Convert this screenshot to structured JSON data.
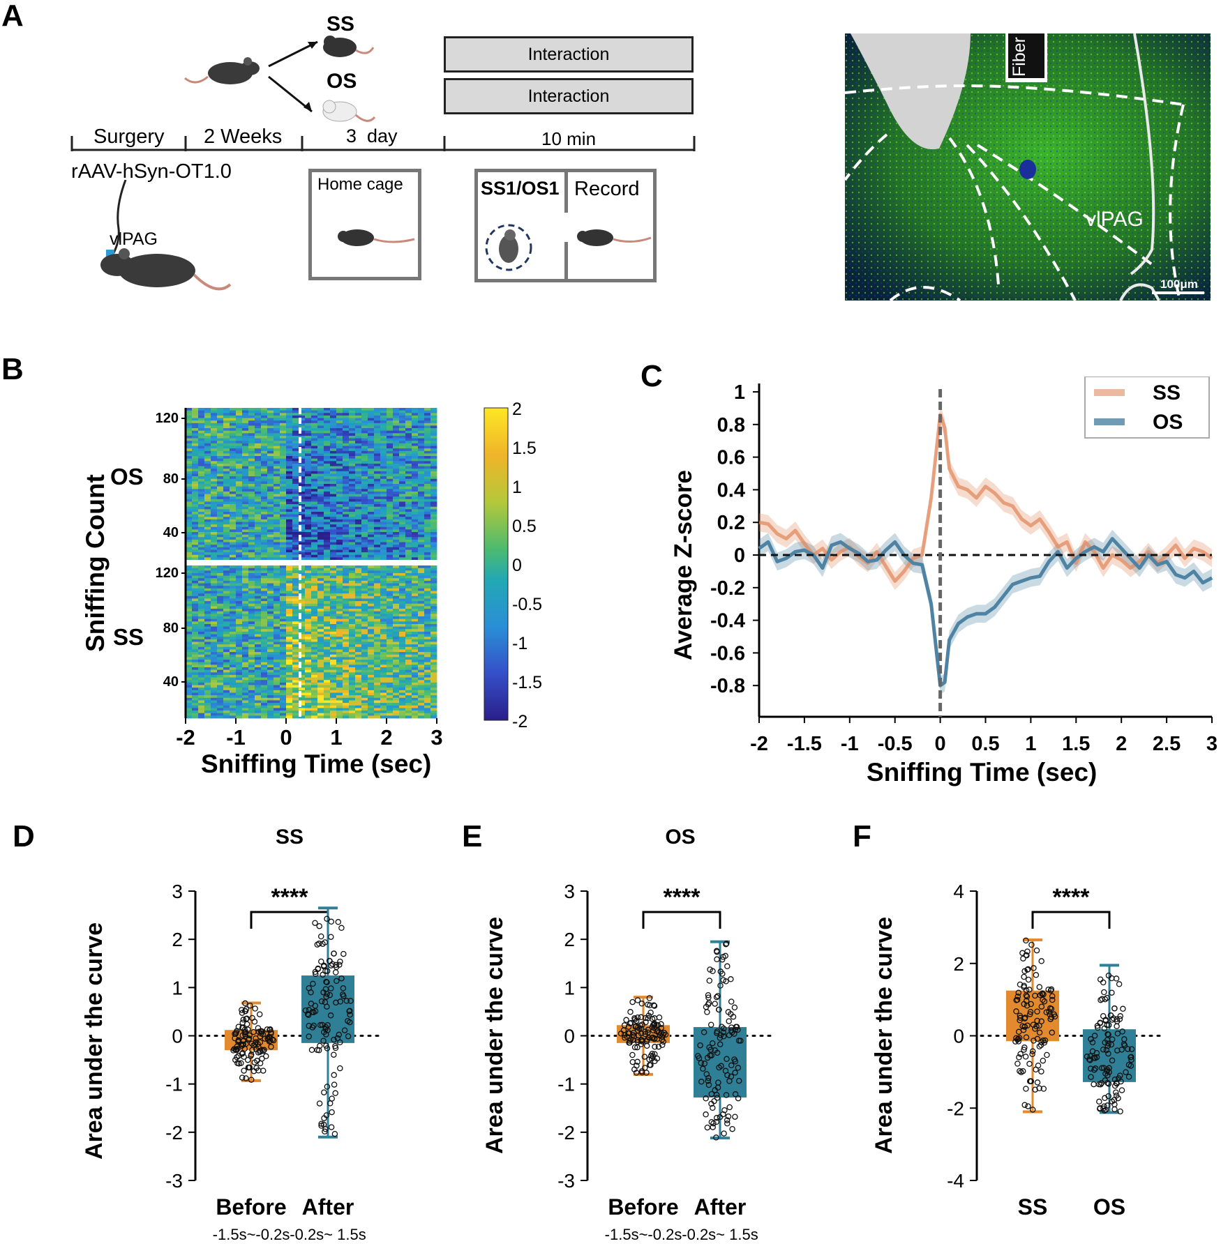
{
  "panels": {
    "a": "A",
    "b": "B",
    "c": "C",
    "d": "D",
    "e": "E",
    "f": "F"
  },
  "colors": {
    "ss": "#e08a5f",
    "os": "#4e83a3",
    "box_orange": "#e38a2e",
    "box_teal": "#2f7f96",
    "scope_green": "#3dbb2a"
  },
  "panel_a": {
    "group_ss": "SS",
    "group_os": "OS",
    "box_interaction_1": "Interaction",
    "box_interaction_2": "Interaction",
    "timeline": [
      "Surgery",
      "2 Weeks",
      "3  day",
      "10 min"
    ],
    "virus": "rAAV-hSyn-OT1.0",
    "region_label": "vlPAG",
    "home_cage": "Home cage",
    "chamber_left": "SS1/OS1",
    "chamber_right": "Record",
    "micro_fiber": "Fiber",
    "micro_region": "vlPAG",
    "micro_scale": "100μm"
  },
  "heatmap": {
    "ylabel": "Sniffing Count",
    "xlabel": "Sniffing Time (sec)",
    "group_top": "OS",
    "group_bottom": "SS",
    "yticks_top": [
      "120",
      "80",
      "40"
    ],
    "yticks_bottom": [
      "120",
      "80",
      "40"
    ],
    "xticks": [
      "-2",
      "-1",
      "0",
      "1",
      "2",
      "3"
    ],
    "colorbar_ticks": [
      "2",
      "1.5",
      "1",
      "0.5",
      "0",
      "-0.5",
      "-1",
      "-1.5",
      "-2"
    ],
    "rows_per_group": 120,
    "x_range": [
      -2,
      3
    ],
    "z_range": [
      -2,
      2
    ]
  },
  "chart_data": [
    {
      "type": "line",
      "panel": "C",
      "title": "",
      "xlabel": "Sniffing Time (sec)",
      "ylabel": "Average Z-score",
      "xlim": [
        -2,
        3
      ],
      "ylim": [
        -1,
        1
      ],
      "xticks": [
        "-2",
        "-1.5",
        "-1",
        "-0.5",
        "0",
        "0.5",
        "1",
        "1.5",
        "2",
        "2.5",
        "3"
      ],
      "yticks": [
        "1",
        "0.8",
        "0.6",
        "0.4",
        "0.2",
        "0",
        "-0.2",
        "-0.4",
        "-0.6",
        "-0.8"
      ],
      "legend": "top-right",
      "series": [
        {
          "name": "SS",
          "x": [
            -2,
            -1.9,
            -1.8,
            -1.7,
            -1.6,
            -1.5,
            -1.4,
            -1.3,
            -1.2,
            -1.1,
            -1,
            -0.9,
            -0.8,
            -0.7,
            -0.6,
            -0.5,
            -0.4,
            -0.3,
            -0.2,
            -0.1,
            0,
            0.05,
            0.1,
            0.2,
            0.3,
            0.4,
            0.5,
            0.6,
            0.7,
            0.8,
            0.9,
            1,
            1.1,
            1.2,
            1.3,
            1.4,
            1.5,
            1.6,
            1.7,
            1.8,
            1.9,
            2,
            2.1,
            2.2,
            2.3,
            2.4,
            2.5,
            2.6,
            2.7,
            2.8,
            2.9,
            3
          ],
          "y": [
            0.2,
            0.19,
            0.13,
            0.1,
            0.15,
            0.07,
            0,
            0.04,
            -0.03,
            0.02,
            0.05,
            -0.01,
            -0.05,
            0.02,
            -0.07,
            -0.16,
            -0.1,
            -0.02,
            0,
            0.35,
            0.86,
            0.78,
            0.53,
            0.42,
            0.4,
            0.35,
            0.42,
            0.38,
            0.32,
            0.3,
            0.22,
            0.18,
            0.22,
            0.14,
            0.05,
            0.08,
            -0.05,
            0.08,
            0.02,
            -0.08,
            0.0,
            -0.03,
            -0.08,
            -0.04,
            0.02,
            -0.05,
            0,
            0.06,
            -0.02,
            0.04,
            0.02,
            -0.02
          ]
        },
        {
          "name": "OS",
          "x": [
            -2,
            -1.9,
            -1.8,
            -1.7,
            -1.6,
            -1.5,
            -1.4,
            -1.3,
            -1.2,
            -1.1,
            -1,
            -0.9,
            -0.8,
            -0.7,
            -0.6,
            -0.5,
            -0.4,
            -0.3,
            -0.2,
            -0.1,
            0,
            0.05,
            0.1,
            0.2,
            0.3,
            0.4,
            0.5,
            0.6,
            0.7,
            0.8,
            0.9,
            1,
            1.1,
            1.2,
            1.3,
            1.4,
            1.5,
            1.6,
            1.7,
            1.8,
            1.9,
            2,
            2.1,
            2.2,
            2.3,
            2.4,
            2.5,
            2.6,
            2.7,
            2.8,
            2.9,
            3
          ],
          "y": [
            0.04,
            0.08,
            -0.04,
            -0.02,
            0.02,
            0.03,
            0.0,
            -0.08,
            0.06,
            0.08,
            0.04,
            0.01,
            -0.04,
            -0.03,
            0.03,
            0.08,
            0.0,
            -0.05,
            -0.06,
            -0.3,
            -0.8,
            -0.78,
            -0.52,
            -0.42,
            -0.38,
            -0.36,
            -0.36,
            -0.32,
            -0.25,
            -0.18,
            -0.16,
            -0.14,
            -0.13,
            -0.04,
            0.02,
            -0.08,
            -0.02,
            0.02,
            0.05,
            0.02,
            0.1,
            0.04,
            -0.02,
            -0.08,
            0.0,
            -0.06,
            -0.04,
            -0.12,
            -0.14,
            -0.1,
            -0.17,
            -0.14
          ]
        }
      ]
    },
    {
      "type": "box",
      "panel": "D",
      "title": "SS",
      "ylabel": "Area under the curve",
      "ylim": [
        -3,
        3
      ],
      "yticks": [
        "3",
        "2",
        "1",
        "0",
        "-1",
        "-2",
        "-3"
      ],
      "significance": "****",
      "categories": [
        "Before",
        "After"
      ],
      "sublabels": [
        "-1.5s~-0.2s",
        "-0.2s~ 1.5s"
      ],
      "series": [
        {
          "name": "Before",
          "min": -0.93,
          "q1": -0.3,
          "median": -0.1,
          "q3": 0.12,
          "max": 0.68,
          "n": 120
        },
        {
          "name": "After",
          "min": -2.1,
          "q1": -0.15,
          "median": 0.55,
          "q3": 1.25,
          "max": 2.65,
          "n": 120
        }
      ]
    },
    {
      "type": "box",
      "panel": "E",
      "title": "OS",
      "ylabel": "Area under the curve",
      "ylim": [
        -3,
        3
      ],
      "yticks": [
        "3",
        "2",
        "1",
        "0",
        "-1",
        "-2",
        "-3"
      ],
      "significance": "****",
      "categories": [
        "Before",
        "After"
      ],
      "sublabels": [
        "-1.5s~-0.2s",
        "-0.2s~ 1.5s"
      ],
      "series": [
        {
          "name": "Before",
          "min": -0.8,
          "q1": -0.15,
          "median": 0.05,
          "q3": 0.22,
          "max": 0.8,
          "n": 120
        },
        {
          "name": "After",
          "min": -2.12,
          "q1": -1.28,
          "median": -0.55,
          "q3": 0.18,
          "max": 1.95,
          "n": 120
        }
      ]
    },
    {
      "type": "box",
      "panel": "F",
      "title": "",
      "ylabel": "Area under the curve",
      "ylim": [
        -4,
        4
      ],
      "yticks": [
        "4",
        "2",
        "0",
        "-2",
        "-4"
      ],
      "significance": "****",
      "categories": [
        "SS",
        "OS"
      ],
      "series": [
        {
          "name": "SS",
          "min": -2.1,
          "q1": -0.15,
          "median": 0.55,
          "q3": 1.25,
          "max": 2.65,
          "n": 120
        },
        {
          "name": "OS",
          "min": -2.12,
          "q1": -1.28,
          "median": -0.55,
          "q3": 0.18,
          "max": 1.95,
          "n": 120
        }
      ]
    }
  ]
}
